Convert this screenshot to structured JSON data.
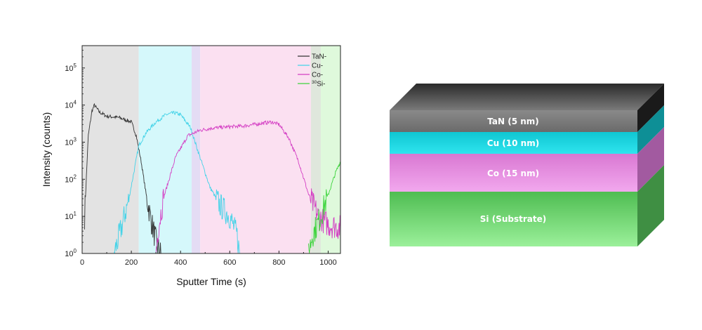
{
  "chart_data": {
    "type": "line",
    "xlabel": "Sputter Time (s)",
    "ylabel": "Intensity (counts)",
    "xlim": [
      0,
      1050
    ],
    "ylim": [
      1,
      400000
    ],
    "yscale": "log",
    "x_ticks": [
      "0",
      "200",
      "400",
      "600",
      "800",
      "1000"
    ],
    "y_ticks": [
      {
        "base": "10",
        "exp": "0"
      },
      {
        "base": "10",
        "exp": "1"
      },
      {
        "base": "10",
        "exp": "2"
      },
      {
        "base": "10",
        "exp": "3"
      },
      {
        "base": "10",
        "exp": "4"
      },
      {
        "base": "10",
        "exp": "5"
      }
    ],
    "legend_position": "top-right",
    "region_bands": [
      {
        "x0": 0,
        "x1": 230,
        "color": "#e3e3e3"
      },
      {
        "x0": 230,
        "x1": 445,
        "color": "#d5f8fb"
      },
      {
        "x0": 445,
        "x1": 480,
        "color": "#e4dcf4"
      },
      {
        "x0": 480,
        "x1": 930,
        "color": "#fbe0f1"
      },
      {
        "x0": 930,
        "x1": 970,
        "color": "#dfe7dc"
      },
      {
        "x0": 970,
        "x1": 1050,
        "color": "#dff9dc"
      }
    ],
    "series": [
      {
        "name": "TaN-",
        "color": "#333333",
        "x": [
          10,
          25,
          40,
          50,
          70,
          100,
          150,
          200,
          220,
          240,
          260,
          280,
          295,
          305,
          320
        ],
        "y": [
          10,
          1500,
          7000,
          10000,
          6500,
          5000,
          4600,
          3500,
          1500,
          300,
          40,
          8,
          3,
          1.5,
          1
        ]
      },
      {
        "name": "Cu-",
        "color": "#44d3e8",
        "x": [
          130,
          160,
          190,
          210,
          230,
          260,
          300,
          340,
          375,
          400,
          440,
          470,
          520,
          560,
          600,
          630,
          640
        ],
        "y": [
          1,
          5,
          30,
          150,
          800,
          1800,
          3500,
          5500,
          6200,
          5500,
          2500,
          600,
          60,
          20,
          10,
          3,
          1
        ]
      },
      {
        "name": "Co-",
        "color": "#d43fc4",
        "x": [
          300,
          310,
          330,
          380,
          430,
          480,
          530,
          600,
          650,
          700,
          740,
          770,
          800,
          840,
          880,
          920,
          960,
          1000,
          1050
        ],
        "y": [
          1,
          5,
          30,
          400,
          1500,
          2100,
          2400,
          2600,
          2700,
          3000,
          3300,
          3500,
          3000,
          1300,
          300,
          40,
          10,
          6,
          5
        ]
      },
      {
        "name": "Si-",
        "legend_prefix": "30",
        "color": "#3cd43c",
        "x": [
          920,
          935,
          950,
          970,
          990,
          1010,
          1030,
          1050
        ],
        "y": [
          1,
          3,
          5,
          10,
          25,
          60,
          150,
          300
        ]
      }
    ]
  },
  "stack": {
    "layers": [
      {
        "label": "TaN (5 nm)",
        "color": "#808080"
      },
      {
        "label": "Cu (10 nm)",
        "color": "#14d2dc"
      },
      {
        "label": "Co (15 nm)",
        "color": "#e58ee0"
      },
      {
        "label": "Si (Substrate)",
        "color": "#68d26b"
      }
    ]
  }
}
